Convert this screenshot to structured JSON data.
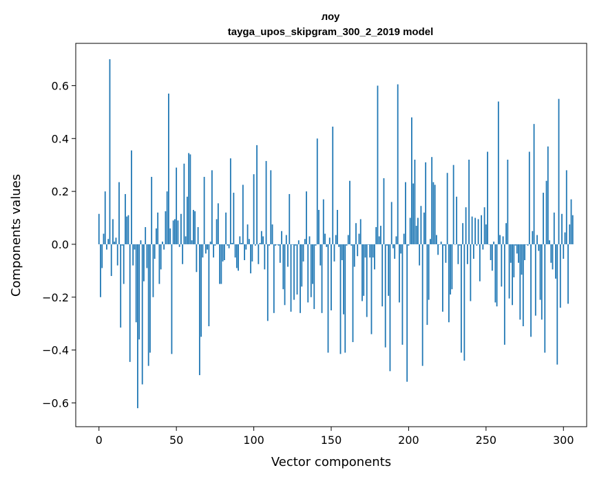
{
  "chart_data": {
    "type": "bar",
    "title": "лоу",
    "subtitle": "tayga_upos_skipgram_300_2_2019 model",
    "xlabel": "Vector components",
    "ylabel": "Components values",
    "xlim": [
      -15,
      315
    ],
    "ylim": [
      -0.69,
      0.76
    ],
    "x_ticks": [
      0,
      50,
      100,
      150,
      200,
      250,
      300
    ],
    "x_tick_labels": [
      "0",
      "50",
      "100",
      "150",
      "200",
      "250",
      "300"
    ],
    "y_ticks": [
      -0.6,
      -0.4,
      -0.2,
      0.0,
      0.2,
      0.4,
      0.6
    ],
    "y_tick_labels": [
      "−0.6",
      "−0.4",
      "−0.2",
      "0.0",
      "0.2",
      "0.4",
      "0.6"
    ],
    "bar_color": "#1f77b4",
    "grid": false,
    "values": [
      0.115,
      -0.2,
      -0.09,
      0.04,
      0.2,
      -0.02,
      0.02,
      0.7,
      -0.12,
      0.095,
      0.01,
      0.025,
      -0.08,
      0.235,
      -0.315,
      -0.005,
      -0.15,
      0.19,
      0.105,
      0.11,
      -0.445,
      0.355,
      -0.08,
      -0.02,
      -0.295,
      -0.62,
      -0.36,
      0.015,
      -0.53,
      -0.14,
      0.065,
      -0.09,
      -0.46,
      -0.41,
      0.255,
      -0.2,
      -0.055,
      0.06,
      0.12,
      -0.15,
      -0.095,
      0.01,
      -0.02,
      0.125,
      0.2,
      0.57,
      0.06,
      -0.415,
      0.09,
      0.095,
      0.29,
      0.09,
      -0.01,
      0.115,
      -0.075,
      0.305,
      0.03,
      0.18,
      0.345,
      0.34,
      0.015,
      0.13,
      0.125,
      -0.105,
      0.065,
      -0.495,
      -0.35,
      -0.05,
      0.255,
      -0.035,
      -0.02,
      -0.31,
      0.01,
      0.28,
      -0.05,
      -0.005,
      0.095,
      0.155,
      -0.15,
      -0.15,
      -0.065,
      -0.06,
      0.12,
      -0.005,
      -0.015,
      0.325,
      0.005,
      0.195,
      -0.05,
      -0.09,
      -0.1,
      0.03,
      0.005,
      0.225,
      -0.06,
      -0.02,
      0.075,
      0.02,
      -0.11,
      -0.065,
      0.265,
      -0.005,
      0.375,
      -0.075,
      0.005,
      0.05,
      0.03,
      -0.095,
      0.315,
      -0.29,
      -0.005,
      0.28,
      0.075,
      -0.26,
      -0.005,
      0.0,
      -0.005,
      -0.07,
      0.05,
      -0.17,
      -0.23,
      0.035,
      -0.085,
      0.19,
      -0.255,
      0.0,
      -0.21,
      -0.005,
      -0.19,
      0.015,
      -0.26,
      -0.16,
      -0.065,
      0.02,
      0.2,
      -0.22,
      0.03,
      -0.2,
      -0.15,
      -0.245,
      -0.005,
      0.4,
      0.13,
      -0.08,
      -0.26,
      0.17,
      0.04,
      -0.01,
      -0.41,
      0.025,
      -0.25,
      0.445,
      -0.065,
      0.035,
      0.13,
      -0.01,
      -0.415,
      -0.06,
      -0.265,
      -0.41,
      -0.005,
      0.035,
      0.24,
      -0.005,
      -0.37,
      -0.085,
      0.08,
      -0.045,
      0.04,
      0.095,
      -0.215,
      -0.195,
      -0.05,
      -0.275,
      0.0,
      -0.05,
      -0.34,
      -0.05,
      -0.095,
      0.065,
      0.6,
      0.03,
      0.07,
      -0.235,
      0.25,
      -0.39,
      -0.005,
      -0.195,
      -0.48,
      0.16,
      -0.015,
      -0.055,
      0.03,
      0.605,
      -0.22,
      -0.035,
      -0.38,
      0.04,
      0.235,
      -0.52,
      -0.005,
      0.1,
      0.48,
      0.23,
      0.32,
      0.07,
      0.1,
      -0.08,
      0.145,
      -0.46,
      0.12,
      0.31,
      -0.305,
      -0.21,
      0.02,
      0.33,
      0.235,
      0.225,
      0.035,
      -0.04,
      0.0,
      0.01,
      -0.255,
      -0.005,
      -0.07,
      0.27,
      -0.295,
      -0.19,
      -0.17,
      0.3,
      0.0,
      0.18,
      -0.075,
      -0.005,
      -0.41,
      0.08,
      -0.44,
      0.14,
      -0.075,
      0.32,
      -0.215,
      0.105,
      -0.055,
      0.1,
      -0.005,
      0.095,
      -0.14,
      0.11,
      -0.02,
      0.14,
      0.075,
      0.35,
      0.0,
      -0.06,
      -0.1,
      0.01,
      -0.22,
      -0.235,
      0.54,
      0.035,
      -0.16,
      0.03,
      -0.38,
      0.08,
      0.32,
      -0.205,
      -0.07,
      -0.23,
      -0.125,
      -0.005,
      -0.035,
      -0.07,
      -0.285,
      -0.115,
      -0.31,
      -0.06,
      0.0,
      -0.005,
      0.35,
      -0.35,
      0.05,
      0.455,
      -0.27,
      0.035,
      -0.025,
      -0.21,
      -0.285,
      0.195,
      -0.41,
      0.24,
      0.37,
      0.015,
      -0.07,
      -0.095,
      0.12,
      -0.13,
      -0.455,
      0.55,
      -0.24,
      0.115,
      -0.055,
      0.045,
      0.28,
      -0.225,
      0.075,
      0.17,
      0.11
    ]
  }
}
